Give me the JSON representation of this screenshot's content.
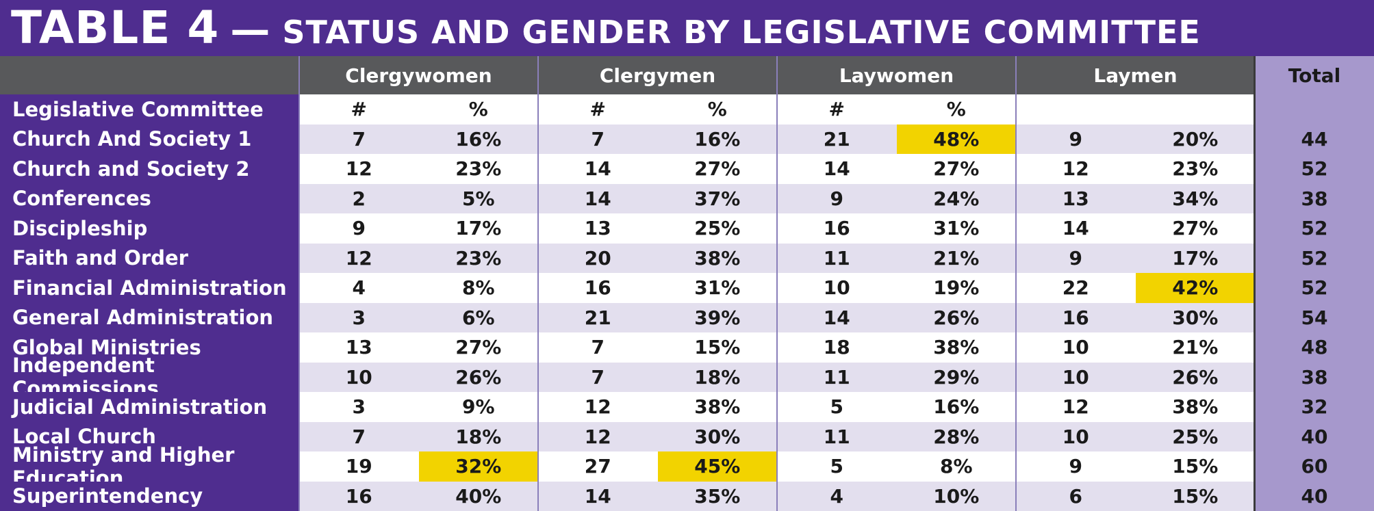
{
  "title": {
    "main": "TABLE 4",
    "dash": "—",
    "sub": "STATUS AND GENDER BY LEGISLATIVE COMMITTEE"
  },
  "groups": [
    "Clergywomen",
    "Clergymen",
    "Laywomen",
    "Laymen"
  ],
  "total_label": "Total",
  "subheader": {
    "label": "Legislative Committee",
    "cols": [
      "#",
      "%",
      "#",
      "%",
      "#",
      "%",
      "",
      ""
    ]
  },
  "rows": [
    {
      "name": "Church And Society 1",
      "vals": [
        "7",
        "16%",
        "7",
        "16%",
        "21",
        "48%",
        "9",
        "20%"
      ],
      "total": "44",
      "highlight": [
        5
      ]
    },
    {
      "name": "Church and Society 2",
      "vals": [
        "12",
        "23%",
        "14",
        "27%",
        "14",
        "27%",
        "12",
        "23%"
      ],
      "total": "52",
      "highlight": []
    },
    {
      "name": "Conferences",
      "vals": [
        "2",
        "5%",
        "14",
        "37%",
        "9",
        "24%",
        "13",
        "34%"
      ],
      "total": "38",
      "highlight": []
    },
    {
      "name": "Discipleship",
      "vals": [
        "9",
        "17%",
        "13",
        "25%",
        "16",
        "31%",
        "14",
        "27%"
      ],
      "total": "52",
      "highlight": []
    },
    {
      "name": "Faith and Order",
      "vals": [
        "12",
        "23%",
        "20",
        "38%",
        "11",
        "21%",
        "9",
        "17%"
      ],
      "total": "52",
      "highlight": []
    },
    {
      "name": "Financial Administration",
      "vals": [
        "4",
        "8%",
        "16",
        "31%",
        "10",
        "19%",
        "22",
        "42%"
      ],
      "total": "52",
      "highlight": [
        7
      ]
    },
    {
      "name": "General Administration",
      "vals": [
        "3",
        "6%",
        "21",
        "39%",
        "14",
        "26%",
        "16",
        "30%"
      ],
      "total": "54",
      "highlight": []
    },
    {
      "name": "Global Ministries",
      "vals": [
        "13",
        "27%",
        "7",
        "15%",
        "18",
        "38%",
        "10",
        "21%"
      ],
      "total": "48",
      "highlight": []
    },
    {
      "name": "Independent Commissions",
      "vals": [
        "10",
        "26%",
        "7",
        "18%",
        "11",
        "29%",
        "10",
        "26%"
      ],
      "total": "38",
      "highlight": []
    },
    {
      "name": "Judicial Administration",
      "vals": [
        "3",
        "9%",
        "12",
        "38%",
        "5",
        "16%",
        "12",
        "38%"
      ],
      "total": "32",
      "highlight": []
    },
    {
      "name": "Local Church",
      "vals": [
        "7",
        "18%",
        "12",
        "30%",
        "11",
        "28%",
        "10",
        "25%"
      ],
      "total": "40",
      "highlight": []
    },
    {
      "name": "Ministry and Higher Education",
      "vals": [
        "19",
        "32%",
        "27",
        "45%",
        "5",
        "8%",
        "9",
        "15%"
      ],
      "total": "60",
      "highlight": [
        1,
        3
      ]
    },
    {
      "name": "Superintendency",
      "vals": [
        "16",
        "40%",
        "14",
        "35%",
        "4",
        "10%",
        "6",
        "15%"
      ],
      "total": "40",
      "highlight": []
    }
  ],
  "colors": {
    "purple": "#4f2d8f",
    "header_gray": "#58595b",
    "row_alt": "#e3dfee",
    "row_white": "#ffffff",
    "total_col": "#a698cc",
    "highlight": "#f2d300"
  }
}
